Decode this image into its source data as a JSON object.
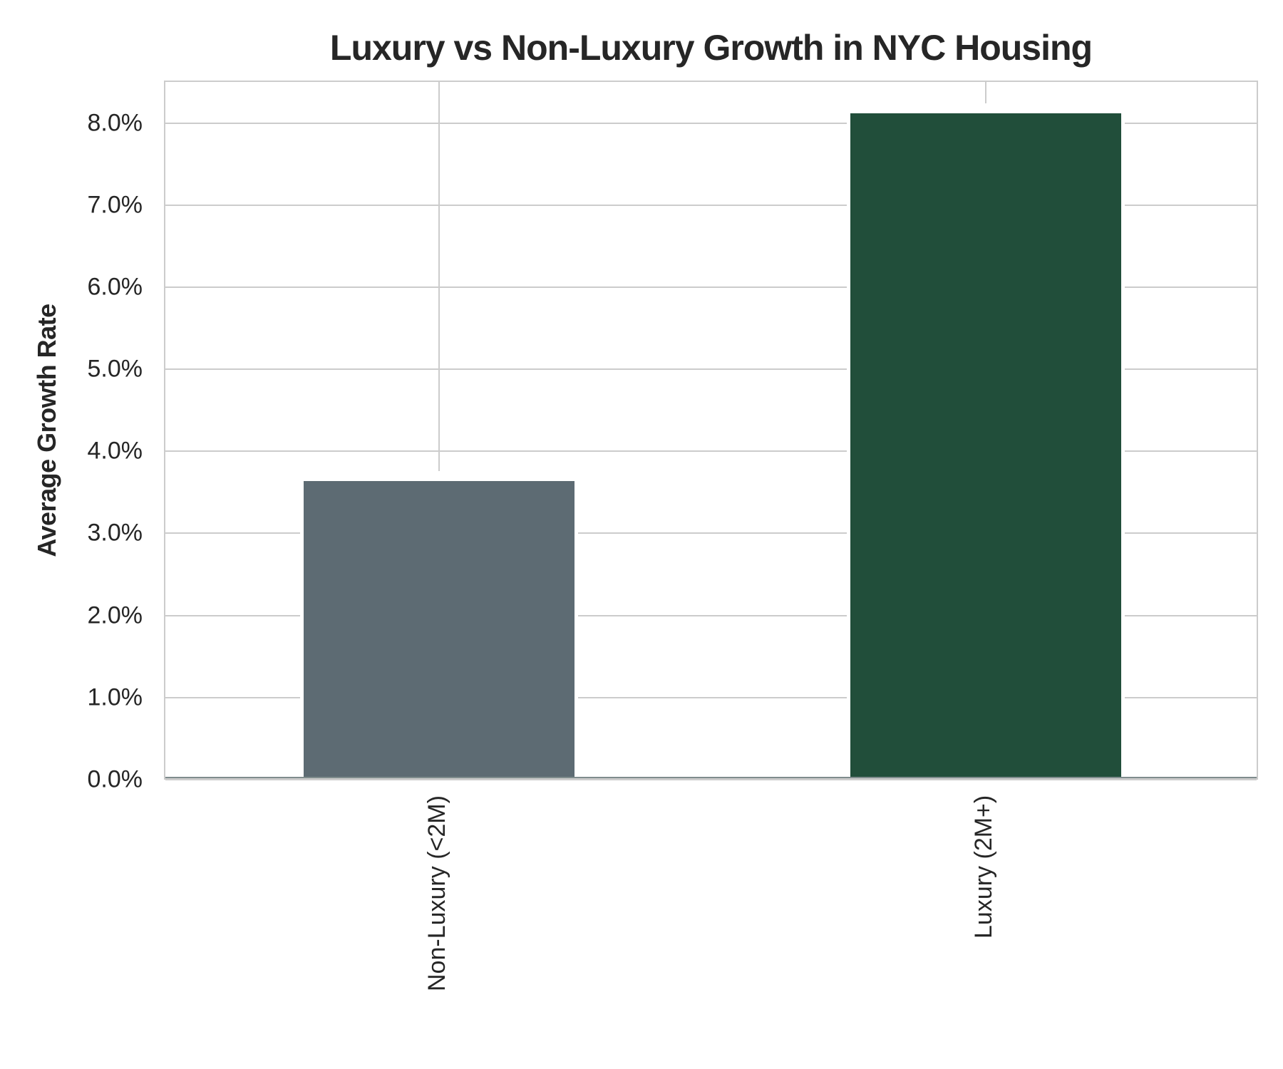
{
  "chart_data": {
    "type": "bar",
    "title": "Luxury vs Non-Luxury Growth in NYC Housing",
    "xlabel": "",
    "ylabel": "Average Growth Rate",
    "categories": [
      "Non-Luxury (<2M)",
      "Luxury (2M+)"
    ],
    "values": [
      3.62,
      8.1
    ],
    "value_unit": "%",
    "colors": [
      "#5d6b73",
      "#214e3a"
    ],
    "ylim": [
      0,
      8.5
    ],
    "yticks": [
      "0.0%",
      "1.0%",
      "2.0%",
      "3.0%",
      "4.0%",
      "5.0%",
      "6.0%",
      "7.0%",
      "8.0%"
    ],
    "grid": true,
    "legend": null,
    "xtick_rotation": 90
  }
}
